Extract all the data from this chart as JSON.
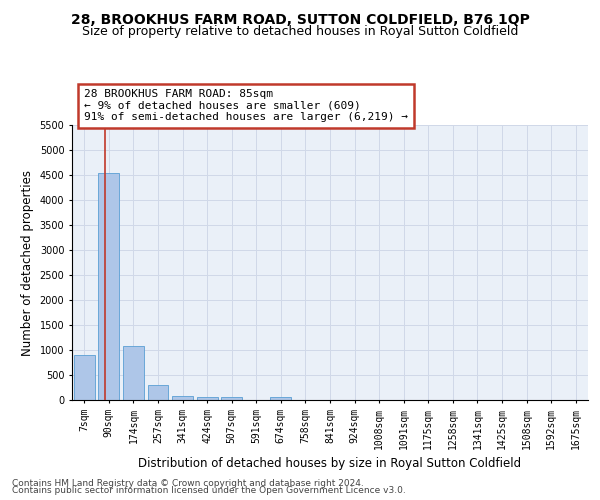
{
  "title": "28, BROOKHUS FARM ROAD, SUTTON COLDFIELD, B76 1QP",
  "subtitle": "Size of property relative to detached houses in Royal Sutton Coldfield",
  "xlabel": "Distribution of detached houses by size in Royal Sutton Coldfield",
  "ylabel": "Number of detached properties",
  "footer_line1": "Contains HM Land Registry data © Crown copyright and database right 2024.",
  "footer_line2": "Contains public sector information licensed under the Open Government Licence v3.0.",
  "bin_labels": [
    "7sqm",
    "90sqm",
    "174sqm",
    "257sqm",
    "341sqm",
    "424sqm",
    "507sqm",
    "591sqm",
    "674sqm",
    "758sqm",
    "841sqm",
    "924sqm",
    "1008sqm",
    "1091sqm",
    "1175sqm",
    "1258sqm",
    "1341sqm",
    "1425sqm",
    "1508sqm",
    "1592sqm",
    "1675sqm"
  ],
  "bar_heights": [
    900,
    4550,
    1080,
    300,
    80,
    60,
    55,
    0,
    60,
    0,
    0,
    0,
    0,
    0,
    0,
    0,
    0,
    0,
    0,
    0,
    0
  ],
  "bar_color": "#aec6e8",
  "bar_edgecolor": "#5a9fd4",
  "property_line_color": "#c0392b",
  "annotation_text": "28 BROOKHUS FARM ROAD: 85sqm\n← 9% of detached houses are smaller (609)\n91% of semi-detached houses are larger (6,219) →",
  "annotation_box_color": "#c0392b",
  "ylim": [
    0,
    5500
  ],
  "yticks": [
    0,
    500,
    1000,
    1500,
    2000,
    2500,
    3000,
    3500,
    4000,
    4500,
    5000,
    5500
  ],
  "grid_color": "#d0d8e8",
  "bg_color": "#eaf0f8",
  "title_fontsize": 10,
  "subtitle_fontsize": 9,
  "axis_label_fontsize": 8.5,
  "tick_fontsize": 7,
  "annotation_fontsize": 8,
  "footer_fontsize": 6.5
}
